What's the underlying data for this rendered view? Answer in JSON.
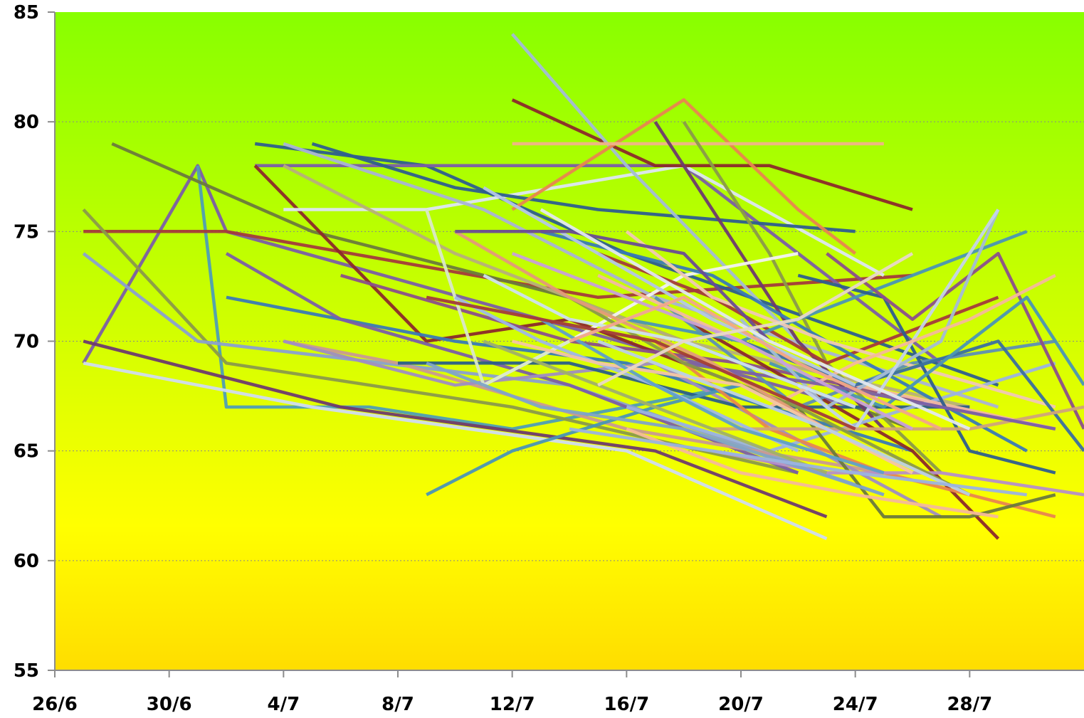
{
  "chart_data": {
    "type": "line",
    "title": "",
    "xlabel": "",
    "ylabel": "",
    "x_ticks": [
      "26/6",
      "30/6",
      "4/7",
      "8/7",
      "12/7",
      "16/7",
      "20/7",
      "24/7",
      "28/7"
    ],
    "x_tick_days": [
      0,
      4,
      8,
      12,
      16,
      20,
      24,
      28,
      32
    ],
    "x_range_days": [
      0,
      36
    ],
    "y_ticks": [
      "55",
      "60",
      "65",
      "70",
      "75",
      "80",
      "85"
    ],
    "ylim": [
      55,
      85
    ],
    "grid": {
      "horizontal": true,
      "vertical": false
    },
    "background_gradient": {
      "top": "#88ff00",
      "middle": "#ffff00",
      "bottom": "#ffdd00"
    },
    "series": [
      {
        "color": "#7b5ea7",
        "x": [
          "27/6",
          "1/7",
          "2/7",
          "13/7",
          "24/7"
        ],
        "y": [
          69,
          78,
          75,
          71,
          67
        ]
      },
      {
        "color": "#4e9eb5",
        "x": [
          "1/7",
          "2/7",
          "7/7",
          "12/7",
          "20/7"
        ],
        "y": [
          78,
          67,
          67,
          66,
          68
        ]
      },
      {
        "color": "#a33b3b",
        "x": [
          "27/6",
          "2/7",
          "15/7",
          "26/7"
        ],
        "y": [
          75,
          75,
          72,
          73
        ]
      },
      {
        "color": "#8a9a4a",
        "x": [
          "27/6",
          "2/7",
          "12/7",
          "22/7"
        ],
        "y": [
          76,
          69,
          67,
          64
        ]
      },
      {
        "color": "#8aa0d0",
        "x": [
          "27/6",
          "1/7",
          "14/7",
          "25/7"
        ],
        "y": [
          74,
          70,
          68,
          63
        ]
      },
      {
        "color": "#d0dcef",
        "x": [
          "27/6",
          "5/7",
          "16/7",
          "23/7"
        ],
        "y": [
          69,
          67,
          65,
          61
        ]
      },
      {
        "color": "#6e3a6e",
        "x": [
          "27/6",
          "6/7",
          "17/7",
          "23/7"
        ],
        "y": [
          70,
          67,
          65,
          62
        ]
      },
      {
        "color": "#6b7a3c",
        "x": [
          "28/6",
          "5/7",
          "14/7",
          "26/7"
        ],
        "y": [
          79,
          75,
          72,
          66
        ]
      },
      {
        "color": "#2e5e8e",
        "x": [
          "3/7",
          "9/7",
          "16/7",
          "29/7"
        ],
        "y": [
          79,
          78,
          74,
          68
        ]
      },
      {
        "color": "#7b5ea7",
        "x": [
          "3/7",
          "11/7",
          "18/7",
          "27/7"
        ],
        "y": [
          78,
          78,
          78,
          69
        ]
      },
      {
        "color": "#8b2a2a",
        "x": [
          "3/7",
          "9/7",
          "14/7",
          "22/7"
        ],
        "y": [
          78,
          70,
          71,
          67
        ]
      },
      {
        "color": "#3a7ab5",
        "x": [
          "2/7",
          "10/7",
          "16/7",
          "26/7"
        ],
        "y": [
          72,
          70,
          69,
          65
        ]
      },
      {
        "color": "#7b5ea7",
        "x": [
          "2/7",
          "6/7",
          "14/7",
          "22/7"
        ],
        "y": [
          74,
          71,
          68,
          64
        ]
      },
      {
        "color": "#dde6f3",
        "x": [
          "4/7",
          "9/7",
          "18/7",
          "25/7"
        ],
        "y": [
          76,
          76,
          78,
          73
        ]
      },
      {
        "color": "#a9b3d6",
        "x": [
          "4/7",
          "11/7",
          "17/7",
          "29/7"
        ],
        "y": [
          79,
          76,
          72,
          67
        ]
      },
      {
        "color": "#b7b07a",
        "x": [
          "4/7",
          "10/7",
          "18/7",
          "28/7"
        ],
        "y": [
          78,
          74,
          70,
          67
        ]
      },
      {
        "color": "#c99a92",
        "x": [
          "4/7",
          "8/7",
          "16/7",
          "25/7"
        ],
        "y": [
          70,
          69,
          66,
          64
        ]
      },
      {
        "color": "#9f8dc2",
        "x": [
          "4/7",
          "10/7",
          "17/7",
          "27/7"
        ],
        "y": [
          70,
          68,
          69,
          62
        ]
      },
      {
        "color": "#2e5e8e",
        "x": [
          "5/7",
          "10/7",
          "15/7",
          "24/7"
        ],
        "y": [
          79,
          77,
          76,
          75
        ]
      },
      {
        "color": "#8b4f8b",
        "x": [
          "6/7",
          "14/7",
          "20/7",
          "31/7"
        ],
        "y": [
          73,
          70,
          69,
          66
        ]
      },
      {
        "color": "#2b5f87",
        "x": [
          "8/7",
          "14/7",
          "20/7",
          "28/7"
        ],
        "y": [
          69,
          69,
          67,
          67
        ]
      },
      {
        "color": "#4a95b5",
        "x": [
          "9/7",
          "12/7",
          "17/7",
          "20/7"
        ],
        "y": [
          63,
          65,
          67,
          68
        ]
      },
      {
        "color": "#8b2a2a",
        "x": [
          "12/7",
          "17/7",
          "21/7",
          "26/7"
        ],
        "y": [
          81,
          78,
          78,
          76
        ]
      },
      {
        "color": "#a3bcd6",
        "x": [
          "12/7",
          "16/7",
          "19/7",
          "22/7"
        ],
        "y": [
          84,
          78,
          74,
          70
        ]
      },
      {
        "color": "#e8864f",
        "x": [
          "12/7",
          "18/7",
          "22/7",
          "24/7"
        ],
        "y": [
          76,
          81,
          76,
          74
        ]
      },
      {
        "color": "#f0b38a",
        "x": [
          "12/7",
          "18/7",
          "22/7",
          "25/7"
        ],
        "y": [
          79,
          79,
          79,
          79
        ]
      },
      {
        "color": "#6e3a6e",
        "x": [
          "17/7",
          "20/7",
          "22/7",
          "25/7"
        ],
        "y": [
          80,
          74,
          70,
          66
        ]
      },
      {
        "color": "#8a9a4a",
        "x": [
          "18/7",
          "21/7",
          "23/7",
          "27/7"
        ],
        "y": [
          80,
          74,
          69,
          64
        ]
      },
      {
        "color": "#f2f2f2",
        "x": [
          "11/7",
          "14/7",
          "18/7",
          "22/7"
        ],
        "y": [
          68,
          70,
          73,
          74
        ]
      },
      {
        "color": "#d9e8c8",
        "x": [
          "9/7",
          "11/7",
          "14/7",
          "18/7"
        ],
        "y": [
          76,
          68,
          70,
          72
        ]
      },
      {
        "color": "#a33b3b",
        "x": [
          "15/7",
          "19/7",
          "23/7",
          "29/7"
        ],
        "y": [
          74,
          72,
          69,
          72
        ]
      },
      {
        "color": "#8b2a2a",
        "x": [
          "18/7",
          "22/7",
          "26/7",
          "29/7"
        ],
        "y": [
          71,
          68,
          65,
          61
        ]
      },
      {
        "color": "#3a7ab5",
        "x": [
          "13/7",
          "19/7",
          "23/7",
          "30/7"
        ],
        "y": [
          75,
          73,
          70,
          65
        ]
      },
      {
        "color": "#4a95b5",
        "x": [
          "16/7",
          "20/7",
          "26/7",
          "30/7"
        ],
        "y": [
          71,
          70,
          73,
          75
        ]
      },
      {
        "color": "#5e8fb5",
        "x": [
          "17/7",
          "22/7",
          "26/7",
          "31/7"
        ],
        "y": [
          72,
          67,
          69,
          70
        ]
      },
      {
        "color": "#9bb3e0",
        "x": [
          "16/7",
          "21/7",
          "26/7",
          "31/7"
        ],
        "y": [
          67,
          65,
          67,
          69
        ]
      },
      {
        "color": "#e8864f",
        "x": [
          "17/7",
          "21/7",
          "25/7",
          "31/7"
        ],
        "y": [
          70,
          66,
          64,
          62
        ]
      },
      {
        "color": "#f2b8a2",
        "x": [
          "15/7",
          "20/7",
          "24/7",
          "31/7"
        ],
        "y": [
          73,
          70,
          68,
          66
        ]
      },
      {
        "color": "#f0c8b4",
        "x": [
          "16/7",
          "19/7",
          "23/7",
          "31/7"
        ],
        "y": [
          75,
          72,
          70,
          67
        ]
      },
      {
        "color": "#6b7a3c",
        "x": [
          "22/7",
          "25/7",
          "28/7",
          "31/7"
        ],
        "y": [
          67,
          62,
          62,
          63
        ]
      },
      {
        "color": "#2e5e8e",
        "x": [
          "22/7",
          "25/7",
          "28/7",
          "31/7"
        ],
        "y": [
          73,
          72,
          65,
          64
        ]
      },
      {
        "color": "#8b4f8b",
        "x": [
          "23/7",
          "26/7",
          "29/7",
          "1/8"
        ],
        "y": [
          74,
          71,
          74,
          66
        ]
      },
      {
        "color": "#3a6fa0",
        "x": [
          "20/7",
          "24/7",
          "29/7",
          "1/8"
        ],
        "y": [
          70,
          68,
          70,
          65
        ]
      },
      {
        "color": "#4a95b5",
        "x": [
          "21/7",
          "25/7",
          "30/7",
          "1/8"
        ],
        "y": [
          69,
          67,
          72,
          68
        ]
      },
      {
        "color": "#a3bcd6",
        "x": [
          "20/7",
          "23/7",
          "27/7",
          "29/7"
        ],
        "y": [
          71,
          67,
          70,
          76
        ]
      },
      {
        "color": "#c4d3ea",
        "x": [
          "22/7",
          "24/7",
          "27/7",
          "29/7"
        ],
        "y": [
          68,
          66,
          72,
          76
        ]
      },
      {
        "color": "#f4b99a",
        "x": [
          "21/7",
          "24/7",
          "28/7",
          "31/7"
        ],
        "y": [
          67,
          69,
          71,
          73
        ]
      },
      {
        "color": "#d0a47a",
        "x": [
          "19/7",
          "23/7",
          "28/7",
          "1/8"
        ],
        "y": [
          66,
          66,
          66,
          67
        ]
      },
      {
        "color": "#7b5ea7",
        "x": [
          "18/7",
          "23/7",
          "27/7",
          "31/7"
        ],
        "y": [
          69,
          68,
          67,
          66
        ]
      },
      {
        "color": "#b58fc9",
        "x": [
          "19/7",
          "23/7",
          "27/7",
          "1/8"
        ],
        "y": [
          65,
          64,
          64,
          63
        ]
      },
      {
        "color": "#8a9a4a",
        "x": [
          "14/7",
          "18/7",
          "22/7",
          "28/7"
        ],
        "y": [
          72,
          69,
          67,
          63
        ]
      },
      {
        "color": "#e39a7a",
        "x": [
          "10/7",
          "14/7",
          "19/7",
          "23/7"
        ],
        "y": [
          75,
          72,
          69,
          66
        ]
      },
      {
        "color": "#b4c6e7",
        "x": [
          "11/7",
          "15/7",
          "19/7",
          "24/7"
        ],
        "y": [
          77,
          74,
          71,
          68
        ]
      },
      {
        "color": "#9fb7e8",
        "x": [
          "10/7",
          "13/7",
          "17/7",
          "22/7"
        ],
        "y": [
          72,
          70,
          68,
          65
        ]
      },
      {
        "color": "#6a4c93",
        "x": [
          "10/7",
          "14/7",
          "18/7",
          "21/7"
        ],
        "y": [
          75,
          75,
          74,
          70
        ]
      },
      {
        "color": "#cfe3ef",
        "x": [
          "11/7",
          "14/7",
          "18/7",
          "24/7"
        ],
        "y": [
          73,
          71,
          70,
          67
        ]
      },
      {
        "color": "#f4c5a6",
        "x": [
          "12/7",
          "15/7",
          "20/7",
          "26/7"
        ],
        "y": [
          70,
          69,
          68,
          64
        ]
      },
      {
        "color": "#5f9fca",
        "x": [
          "13/7",
          "17/7",
          "20/7",
          "25/7"
        ],
        "y": [
          71,
          68,
          66,
          64
        ]
      },
      {
        "color": "#a0b06a",
        "x": [
          "11/7",
          "15/7",
          "19/7",
          "23/7"
        ],
        "y": [
          70,
          68,
          66,
          64
        ]
      },
      {
        "color": "#c8a0d8",
        "x": [
          "12/7",
          "16/7",
          "20/7",
          "26/7"
        ],
        "y": [
          74,
          72,
          70,
          66
        ]
      },
      {
        "color": "#e3e8f0",
        "x": [
          "13/7",
          "17/7",
          "21/7",
          "28/7"
        ],
        "y": [
          76,
          73,
          70,
          66
        ]
      },
      {
        "color": "#a33b3b",
        "x": [
          "9/7",
          "13/7",
          "17/7",
          "24/7"
        ],
        "y": [
          72,
          71,
          70,
          66
        ]
      },
      {
        "color": "#7fa4c8",
        "x": [
          "9/7",
          "13/7",
          "18/7",
          "25/7"
        ],
        "y": [
          69,
          67,
          66,
          63
        ]
      },
      {
        "color": "#f2a58a",
        "x": [
          "14/7",
          "18/7",
          "22/7",
          "27/7"
        ],
        "y": [
          70,
          72,
          69,
          66
        ]
      },
      {
        "color": "#bcd0e6",
        "x": [
          "15/7",
          "19/7",
          "23/7",
          "28/7"
        ],
        "y": [
          70,
          68,
          66,
          63
        ]
      },
      {
        "color": "#e8d8c8",
        "x": [
          "15/7",
          "18/7",
          "22/7",
          "26/7"
        ],
        "y": [
          68,
          70,
          71,
          74
        ]
      },
      {
        "color": "#f4b99a",
        "x": [
          "16/7",
          "20/7",
          "24/7",
          "29/7"
        ],
        "y": [
          66,
          64,
          63,
          62
        ]
      },
      {
        "color": "#9bb3e0",
        "x": [
          "14/7",
          "19/7",
          "24/7",
          "30/7"
        ],
        "y": [
          66,
          65,
          64,
          63
        ]
      }
    ]
  }
}
